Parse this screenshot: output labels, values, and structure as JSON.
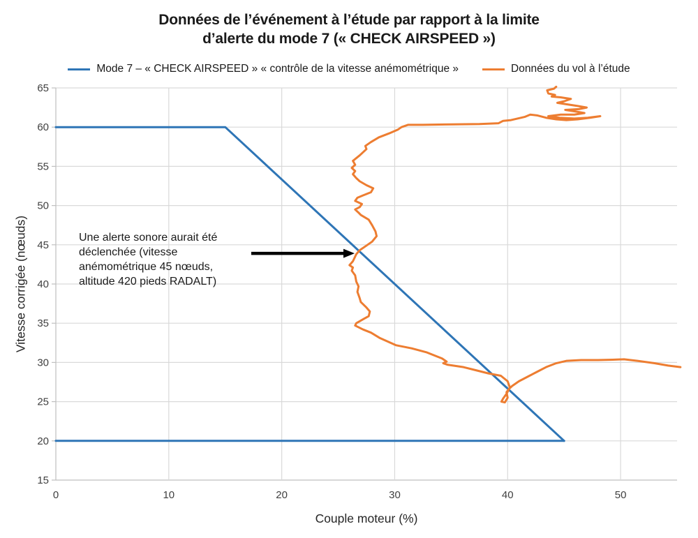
{
  "chart_data": {
    "type": "line",
    "title_line1": "Données de l’événement à l’étude par rapport à la limite",
    "title_line2": "d’alerte du mode 7 (« CHECK AIRSPEED »)",
    "xlabel": "Couple moteur (%)",
    "ylabel": "Vitesse corrigée (nœuds)",
    "xlim": [
      0,
      55
    ],
    "ylim": [
      15,
      65
    ],
    "xticks": [
      0,
      10,
      20,
      30,
      40,
      50
    ],
    "yticks": [
      15,
      20,
      25,
      30,
      35,
      40,
      45,
      50,
      55,
      60,
      65
    ],
    "grid": "both",
    "legend_position": "top",
    "colors": {
      "mode7_line": "#2E75B6",
      "flight_line": "#ED7D31",
      "gridline": "#D9D9D9",
      "axis_border": "#BFBFBF",
      "tick_label": "#404040",
      "arrow": "#000000"
    },
    "series": [
      {
        "name": "Mode 7 – « CHECK AIRSPEED » « contrôle de la vitesse anémométrique »",
        "color": "#2E75B6",
        "segments": [
          [
            [
              0,
              60
            ],
            [
              15,
              60
            ],
            [
              45,
              20
            ]
          ],
          [
            [
              0,
              20
            ],
            [
              45,
              20
            ]
          ]
        ]
      },
      {
        "name": "Données du vol à l’étude",
        "color": "#ED7D31",
        "points": [
          [
            44.3,
            65.15
          ],
          [
            44.1,
            64.9
          ],
          [
            43.5,
            64.7
          ],
          [
            43.6,
            64.3
          ],
          [
            44.2,
            64.1
          ],
          [
            43.9,
            63.9
          ],
          [
            44.7,
            63.8
          ],
          [
            45.6,
            63.6
          ],
          [
            45.0,
            63.3
          ],
          [
            44.4,
            63.1
          ],
          [
            45.3,
            62.9
          ],
          [
            46.2,
            62.7
          ],
          [
            47.0,
            62.5
          ],
          [
            46.3,
            62.3
          ],
          [
            45.1,
            62.2
          ],
          [
            46.0,
            62.0
          ],
          [
            46.8,
            61.8
          ],
          [
            45.9,
            61.6
          ],
          [
            44.7,
            61.6
          ],
          [
            43.6,
            61.4
          ],
          [
            44.6,
            61.2
          ],
          [
            45.9,
            61.1
          ],
          [
            47.1,
            61.2
          ],
          [
            48.2,
            61.4
          ],
          [
            47.3,
            61.2
          ],
          [
            46.2,
            61.0
          ],
          [
            45.2,
            60.9
          ],
          [
            44.3,
            61.0
          ],
          [
            43.4,
            61.2
          ],
          [
            42.6,
            61.5
          ],
          [
            42.0,
            61.6
          ],
          [
            41.5,
            61.3
          ],
          [
            40.9,
            61.1
          ],
          [
            40.3,
            60.9
          ],
          [
            39.6,
            60.8
          ],
          [
            39.2,
            60.5
          ],
          [
            37.5,
            60.4
          ],
          [
            35.0,
            60.35
          ],
          [
            32.5,
            60.3
          ],
          [
            31.2,
            60.3
          ],
          [
            30.6,
            60.0
          ],
          [
            30.3,
            59.7
          ],
          [
            29.5,
            59.2
          ],
          [
            28.6,
            58.7
          ],
          [
            27.9,
            58.1
          ],
          [
            27.4,
            57.6
          ],
          [
            27.5,
            57.2
          ],
          [
            26.9,
            56.4
          ],
          [
            26.3,
            55.7
          ],
          [
            26.5,
            55.2
          ],
          [
            26.2,
            54.8
          ],
          [
            26.5,
            54.4
          ],
          [
            26.3,
            54.0
          ],
          [
            26.6,
            53.5
          ],
          [
            26.9,
            53.1
          ],
          [
            27.5,
            52.6
          ],
          [
            28.1,
            52.2
          ],
          [
            27.9,
            51.7
          ],
          [
            27.2,
            51.3
          ],
          [
            26.7,
            51.0
          ],
          [
            26.5,
            50.6
          ],
          [
            27.1,
            50.2
          ],
          [
            26.9,
            49.8
          ],
          [
            26.5,
            49.5
          ],
          [
            26.8,
            49.1
          ],
          [
            27.0,
            48.8
          ],
          [
            27.7,
            48.2
          ],
          [
            28.0,
            47.5
          ],
          [
            28.3,
            46.7
          ],
          [
            28.4,
            46.1
          ],
          [
            28.0,
            45.4
          ],
          [
            27.4,
            44.8
          ],
          [
            26.9,
            44.3
          ],
          [
            26.6,
            43.8
          ],
          [
            26.3,
            42.9
          ],
          [
            26.0,
            42.4
          ],
          [
            26.3,
            42.1
          ],
          [
            26.2,
            41.7
          ],
          [
            26.5,
            41.1
          ],
          [
            26.6,
            40.3
          ],
          [
            26.8,
            39.7
          ],
          [
            26.7,
            39.0
          ],
          [
            26.9,
            38.2
          ],
          [
            27.0,
            37.7
          ],
          [
            27.5,
            37.0
          ],
          [
            27.8,
            36.5
          ],
          [
            27.7,
            35.9
          ],
          [
            27.2,
            35.5
          ],
          [
            26.6,
            35.0
          ],
          [
            26.5,
            34.7
          ],
          [
            27.2,
            34.2
          ],
          [
            27.9,
            33.8
          ],
          [
            28.7,
            33.1
          ],
          [
            30.1,
            32.2
          ],
          [
            31.5,
            31.8
          ],
          [
            32.8,
            31.3
          ],
          [
            34.2,
            30.5
          ],
          [
            34.6,
            30.1
          ],
          [
            34.3,
            29.9
          ],
          [
            34.7,
            29.7
          ],
          [
            36.1,
            29.4
          ],
          [
            37.2,
            29.0
          ],
          [
            38.3,
            28.6
          ],
          [
            39.4,
            28.3
          ],
          [
            40.0,
            27.6
          ],
          [
            40.2,
            26.8
          ],
          [
            39.9,
            26.0
          ],
          [
            39.6,
            25.4
          ],
          [
            39.45,
            25.0
          ],
          [
            39.75,
            24.9
          ],
          [
            40.0,
            25.5
          ],
          [
            39.9,
            26.2
          ],
          [
            40.1,
            26.6
          ],
          [
            40.4,
            27.0
          ],
          [
            41.0,
            27.6
          ],
          [
            41.8,
            28.2
          ],
          [
            42.6,
            28.8
          ],
          [
            43.4,
            29.4
          ],
          [
            44.3,
            29.9
          ],
          [
            45.2,
            30.2
          ],
          [
            46.5,
            30.3
          ],
          [
            48.0,
            30.3
          ],
          [
            49.3,
            30.35
          ],
          [
            50.3,
            30.4
          ],
          [
            51.5,
            30.2
          ],
          [
            53.0,
            29.9
          ],
          [
            54.2,
            29.6
          ],
          [
            55.3,
            29.4
          ]
        ]
      }
    ],
    "annotation": {
      "text": "Une alerte sonore aurait été\ndéclenchée (vitesse\nanémométrique 45 nœuds,\naltitude 420 pieds RADALT)",
      "arrow_from": [
        17.3,
        43.9
      ],
      "arrow_to": [
        26.45,
        43.9
      ]
    }
  }
}
